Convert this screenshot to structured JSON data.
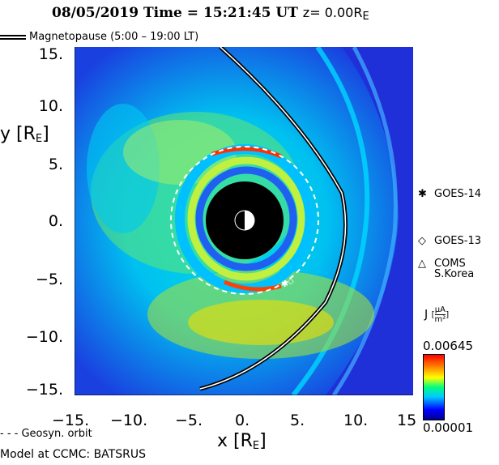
{
  "title": {
    "main": "08/05/2019 Time = 15:21:45 UT",
    "z_label": "z= 0.00R",
    "z_sub": "E"
  },
  "legend": {
    "magnetopause": "Magnetopause (5:00 – 19:00 LT)",
    "geosyn": "Geosyn. orbit"
  },
  "axes": {
    "y_label_main": "y [R",
    "y_label_sub": "E",
    "x_label_main": "x [R",
    "x_label_sub": "E",
    "label_close": "]",
    "y_ticks": [
      "15.",
      "10.",
      "5.",
      "0.",
      "−5.",
      "−10.",
      "−15."
    ],
    "x_ticks": [
      "−15.",
      "−10.",
      "−5.",
      "0.",
      "5.",
      "10.",
      "15"
    ],
    "range": [
      -15,
      15
    ]
  },
  "satellites": [
    {
      "symbol": "✱",
      "name": "GOES-14"
    },
    {
      "symbol": "◇",
      "name": "GOES-13"
    },
    {
      "symbol": "△",
      "name": "COMS"
    },
    {
      "symbol": "",
      "name": "S.Korea"
    }
  ],
  "colorbar": {
    "label": "J",
    "unit_num": "μA",
    "unit_den": "m²",
    "max": "0.00645",
    "min": "0.00001",
    "colors": [
      "#00008b",
      "#0000ff",
      "#00c8ff",
      "#00ff80",
      "#ffff00",
      "#ff8000",
      "#ff0000"
    ]
  },
  "model_label": "Model at CCMC: BATSRUS",
  "colors": {
    "background": "#1a1ad8",
    "earth_shadow": "#000000"
  }
}
